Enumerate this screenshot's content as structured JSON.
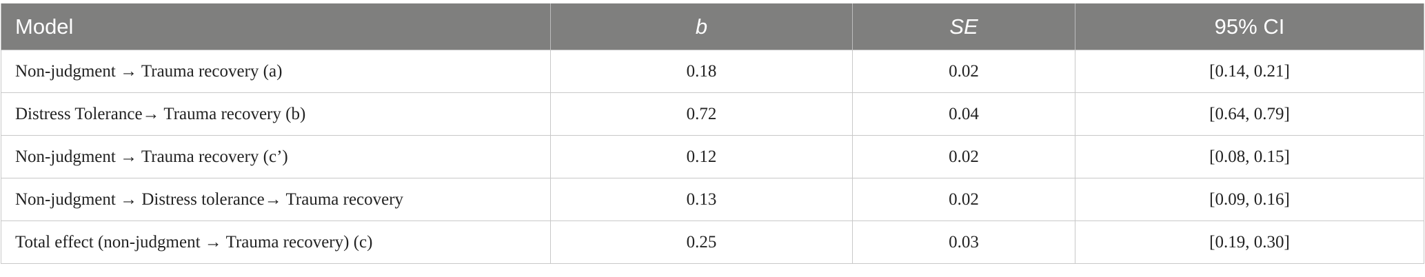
{
  "table": {
    "header": [
      "Model",
      "b",
      "SE",
      "95% CI"
    ],
    "rows": [
      [
        "Non-judgment → Trauma recovery (a)",
        "0.18",
        "0.02",
        "[0.14, 0.21]"
      ],
      [
        "Distress Tolerance→ Trauma recovery (b)",
        "0.72",
        "0.04",
        "[0.64, 0.79]"
      ],
      [
        "Non-judgment → Trauma recovery (c’)",
        "0.12",
        "0.02",
        "[0.08, 0.15]"
      ],
      [
        "Non-judgment → Distress tolerance→ Trauma recovery",
        "0.13",
        "0.02",
        "[0.09, 0.16]"
      ],
      [
        "Total effect (non-judgment → Trauma recovery) (c)",
        "0.25",
        "0.03",
        "[0.19, 0.30]"
      ]
    ]
  }
}
